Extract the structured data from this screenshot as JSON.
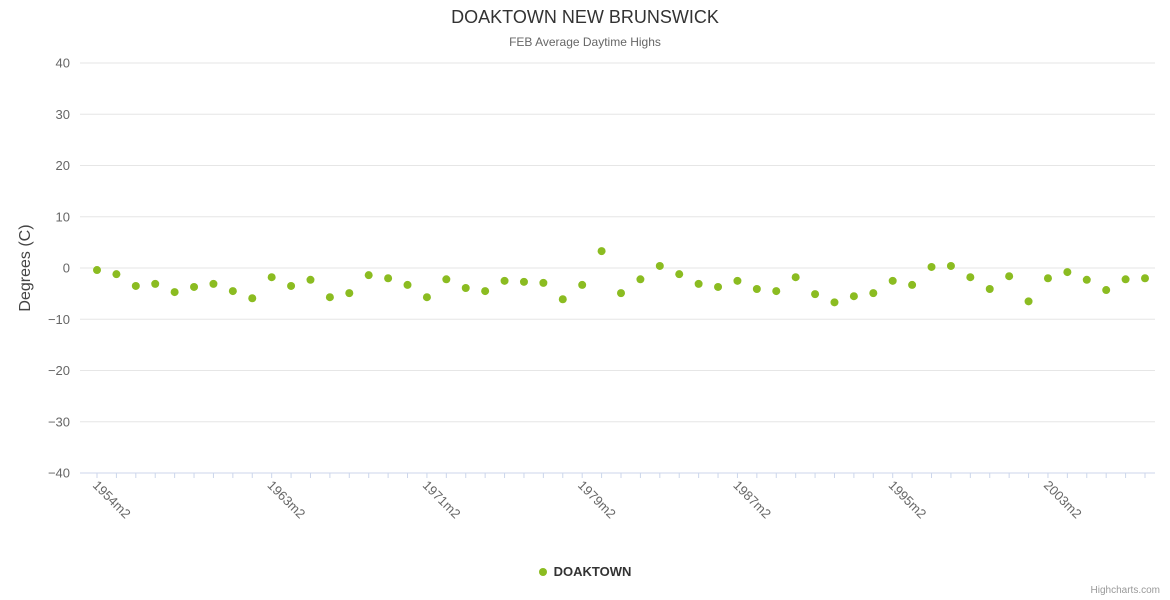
{
  "credits": "Highcharts.com",
  "chart_data": {
    "type": "scatter",
    "title": "DOAKTOWN NEW BRUNSWICK",
    "subtitle": "FEB Average Daytime Highs",
    "xlabel": "",
    "ylabel": "Degrees (C)",
    "ylim": [
      -40,
      40
    ],
    "ytick_interval": 10,
    "grid": true,
    "legend_position": "bottom",
    "x_start_year": 1954,
    "x_tick_labels": [
      "1954m2",
      "1963m2",
      "1971m2",
      "1979m2",
      "1987m2",
      "1995m2",
      "2003m2"
    ],
    "colors": {
      "series": "#8bbc21",
      "gridline": "#e6e6e6",
      "axis_line": "#ccd6eb",
      "axis_label": "#666666"
    },
    "series": [
      {
        "name": "DOAKTOWN",
        "color": "#8bbc21",
        "values": [
          -0.4,
          -1.2,
          -3.5,
          -3.1,
          -4.7,
          -3.7,
          -3.1,
          -4.5,
          -5.9,
          -1.8,
          -3.5,
          -2.3,
          -5.7,
          -4.9,
          -1.4,
          -2.0,
          -3.3,
          -5.7,
          -2.2,
          -3.9,
          -4.5,
          -2.5,
          -2.7,
          -2.9,
          -6.1,
          -3.3,
          3.3,
          -4.9,
          -2.2,
          0.4,
          -1.2,
          -3.1,
          -3.7,
          -2.5,
          -4.1,
          -4.5,
          -1.8,
          -5.1,
          -6.7,
          -5.5,
          -4.9,
          -2.5,
          -3.3,
          0.2,
          0.4,
          -1.8,
          -4.1,
          -1.6,
          -6.5,
          -2.0,
          -0.8,
          -2.3,
          -4.3,
          -2.2,
          -2.0
        ]
      }
    ]
  }
}
